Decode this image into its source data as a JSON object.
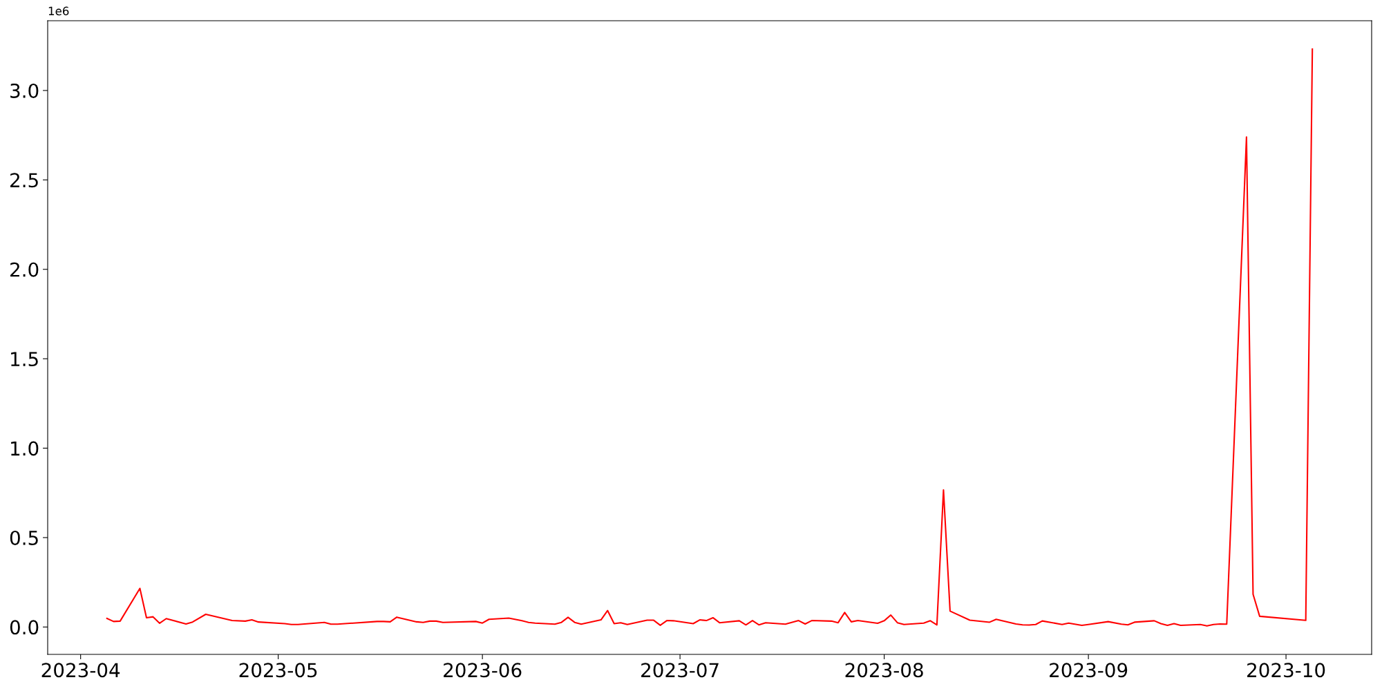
{
  "chart_data": {
    "type": "line",
    "x": [
      "2023-04-05",
      "2023-04-06",
      "2023-04-07",
      "2023-04-10",
      "2023-04-11",
      "2023-04-12",
      "2023-04-13",
      "2023-04-14",
      "2023-04-17",
      "2023-04-18",
      "2023-04-20",
      "2023-04-24",
      "2023-04-26",
      "2023-04-27",
      "2023-04-28",
      "2023-05-02",
      "2023-05-03",
      "2023-05-04",
      "2023-05-08",
      "2023-05-09",
      "2023-05-10",
      "2023-05-16",
      "2023-05-17",
      "2023-05-18",
      "2023-05-19",
      "2023-05-22",
      "2023-05-23",
      "2023-05-24",
      "2023-05-25",
      "2023-05-26",
      "2023-05-31",
      "2023-06-01",
      "2023-06-02",
      "2023-06-05",
      "2023-06-07",
      "2023-06-08",
      "2023-06-09",
      "2023-06-12",
      "2023-06-13",
      "2023-06-14",
      "2023-06-15",
      "2023-06-16",
      "2023-06-19",
      "2023-06-20",
      "2023-06-21",
      "2023-06-22",
      "2023-06-23",
      "2023-06-26",
      "2023-06-27",
      "2023-06-28",
      "2023-06-29",
      "2023-06-30",
      "2023-07-03",
      "2023-07-04",
      "2023-07-05",
      "2023-07-06",
      "2023-07-07",
      "2023-07-10",
      "2023-07-11",
      "2023-07-12",
      "2023-07-13",
      "2023-07-14",
      "2023-07-17",
      "2023-07-19",
      "2023-07-20",
      "2023-07-21",
      "2023-07-24",
      "2023-07-25",
      "2023-07-26",
      "2023-07-27",
      "2023-07-28",
      "2023-07-31",
      "2023-08-01",
      "2023-08-02",
      "2023-08-03",
      "2023-08-04",
      "2023-08-07",
      "2023-08-08",
      "2023-08-09",
      "2023-08-10",
      "2023-08-11",
      "2023-08-14",
      "2023-08-17",
      "2023-08-18",
      "2023-08-21",
      "2023-08-22",
      "2023-08-23",
      "2023-08-24",
      "2023-08-25",
      "2023-08-28",
      "2023-08-29",
      "2023-08-31",
      "2023-09-01",
      "2023-09-04",
      "2023-09-06",
      "2023-09-07",
      "2023-09-08",
      "2023-09-11",
      "2023-09-12",
      "2023-09-13",
      "2023-09-14",
      "2023-09-15",
      "2023-09-18",
      "2023-09-19",
      "2023-09-20",
      "2023-09-21",
      "2023-09-22",
      "2023-09-25",
      "2023-09-26",
      "2023-09-27",
      "2023-10-04",
      "2023-10-05"
    ],
    "series": [
      {
        "color": "#ff0000",
        "values": [
          0.048,
          0.031,
          0.033,
          0.216,
          0.052,
          0.057,
          0.021,
          0.047,
          0.017,
          0.028,
          0.071,
          0.036,
          0.033,
          0.04,
          0.028,
          0.019,
          0.014,
          0.014,
          0.026,
          0.016,
          0.016,
          0.031,
          0.031,
          0.029,
          0.055,
          0.029,
          0.026,
          0.033,
          0.033,
          0.026,
          0.031,
          0.022,
          0.043,
          0.05,
          0.035,
          0.026,
          0.022,
          0.016,
          0.026,
          0.054,
          0.026,
          0.016,
          0.04,
          0.092,
          0.019,
          0.024,
          0.014,
          0.038,
          0.038,
          0.01,
          0.036,
          0.035,
          0.019,
          0.04,
          0.036,
          0.052,
          0.024,
          0.035,
          0.012,
          0.036,
          0.012,
          0.024,
          0.016,
          0.036,
          0.017,
          0.036,
          0.033,
          0.024,
          0.081,
          0.029,
          0.036,
          0.021,
          0.035,
          0.067,
          0.024,
          0.014,
          0.022,
          0.035,
          0.012,
          0.766,
          0.089,
          0.038,
          0.027,
          0.043,
          0.017,
          0.012,
          0.011,
          0.014,
          0.034,
          0.014,
          0.022,
          0.009,
          0.014,
          0.03,
          0.016,
          0.012,
          0.027,
          0.035,
          0.019,
          0.009,
          0.019,
          0.009,
          0.014,
          0.006,
          0.014,
          0.017,
          0.016,
          2.74,
          0.183,
          0.06,
          0.037,
          3.231
        ]
      }
    ],
    "xlim": [
      "2023-03-27",
      "2023-10-14"
    ],
    "xticks": [
      {
        "value": "2023-04-01",
        "label": "2023-04"
      },
      {
        "value": "2023-05-01",
        "label": "2023-05"
      },
      {
        "value": "2023-06-01",
        "label": "2023-06"
      },
      {
        "value": "2023-07-01",
        "label": "2023-07"
      },
      {
        "value": "2023-08-01",
        "label": "2023-08"
      },
      {
        "value": "2023-09-01",
        "label": "2023-09"
      },
      {
        "value": "2023-10-01",
        "label": "2023-10"
      }
    ],
    "ylim": [
      -0.153,
      3.39
    ],
    "yticks": [
      {
        "value": 0,
        "label": "0.0"
      },
      {
        "value": 0.5,
        "label": "0.5"
      },
      {
        "value": 1.0,
        "label": "1.0"
      },
      {
        "value": 1.5,
        "label": "1.5"
      },
      {
        "value": 2.0,
        "label": "2.0"
      },
      {
        "value": 2.5,
        "label": "2.5"
      },
      {
        "value": 3.0,
        "label": "3.0"
      }
    ],
    "annotations": [
      "1e6"
    ],
    "grid": false,
    "legend": false,
    "marker": "none",
    "line_style": "solid"
  }
}
